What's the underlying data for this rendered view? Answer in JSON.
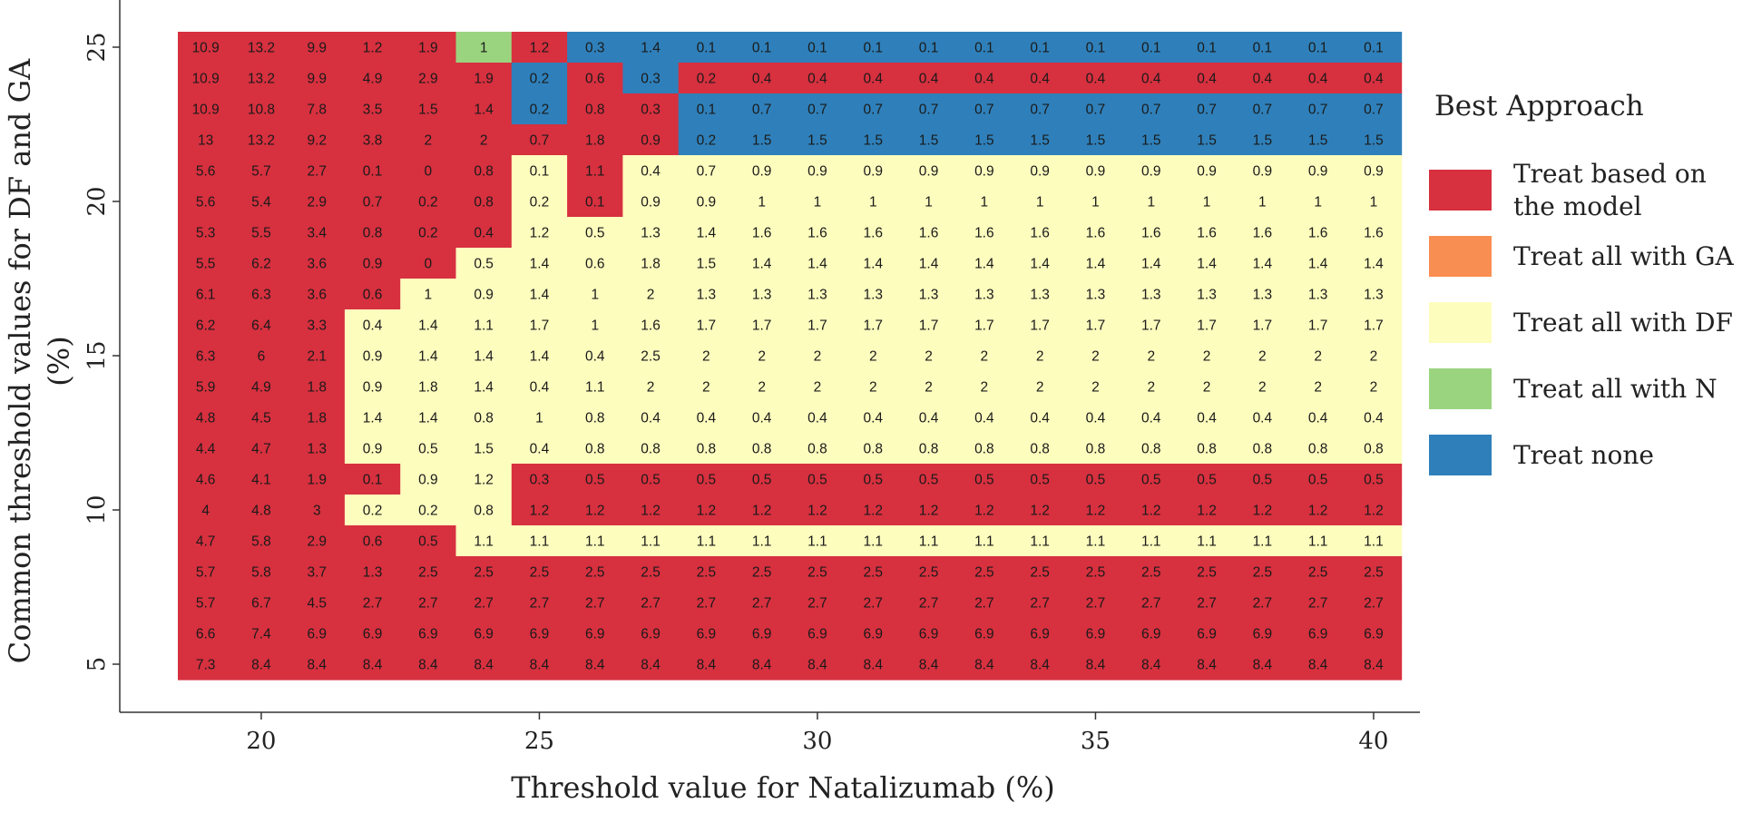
{
  "chart_data": {
    "type": "heatmap",
    "xlabel": "Threshold value for Natalizumab (%)",
    "ylabel_lines": [
      "Common threshold values for DF and GA",
      "(%)"
    ],
    "x": [
      19,
      20,
      21,
      22,
      23,
      24,
      25,
      26,
      27,
      28,
      29,
      30,
      31,
      32,
      33,
      34,
      35,
      36,
      37,
      38,
      39,
      40
    ],
    "y": [
      25,
      24,
      23,
      22,
      21,
      20,
      19,
      18,
      17,
      16,
      15,
      14,
      13,
      12,
      11,
      10,
      9,
      8,
      7,
      6,
      5
    ],
    "xticks": [
      20,
      25,
      30,
      35,
      40
    ],
    "yticks": [
      5,
      10,
      15,
      20,
      25
    ],
    "legend": {
      "title": "Best Approach",
      "entries": [
        {
          "key": "M",
          "label_lines": [
            "Treat based on",
            "the model"
          ],
          "color": "#d7303f"
        },
        {
          "key": "G",
          "label_lines": [
            "Treat all with GA"
          ],
          "color": "#f98e52"
        },
        {
          "key": "D",
          "label_lines": [
            "Treat all with DF"
          ],
          "color": "#fdfdbe"
        },
        {
          "key": "N",
          "label_lines": [
            "Treat all with N"
          ],
          "color": "#9bd47f"
        },
        {
          "key": "T",
          "label_lines": [
            "Treat none"
          ],
          "color": "#2f80ba"
        }
      ]
    },
    "categories": [
      "MMMMMNMTTTTTTTTTTTTTTT",
      "MMMMMMTMTMMMMMMMMMMMMM",
      "MMMMMMTMMTTTTTTTTTTTTT",
      "MMMMMMMMMTTTTTTTTTTTTT",
      "MMMMMMDMDDDDDDDDDDDDDD",
      "MMMMMMDMDDDDDDDDDDDDDD",
      "MMMMMMDDDDDDDDDDDDDDDD",
      "MMMMMDDDDDDDDDDDDDDDDD",
      "MMMMDDDDDDDDDDDDDDDDDD",
      "MMMDDDDDDDDDDDDDDDDDDD",
      "MMMDDDDDDDDDDDDDDDDDDD",
      "MMMDDDDDDDDDDDDDDDDDDD",
      "MMMDDDDDDDDDDDDDDDDDDD",
      "MMMDDDDDDDDDDDDDDDDDDD",
      "MMMMDDMMMMMMMMMMMMMMMM",
      "MMMDDDMMMMMMMMMMMMMMMM",
      "MMMMMDDDDDDDDDDDDDDDDD",
      "MMMMMMMMMMMMMMMMMMMMMM",
      "MMMMMMMMMMMMMMMMMMMMMM",
      "MMMMMMMMMMMMMMMMMMMMMM",
      "MMMMMMMMMMMMMMMMMMMMMM"
    ],
    "values": [
      [
        "10.9",
        "13.2",
        "9.9",
        "1.2",
        "1.9",
        "1",
        "1.2",
        "0.3",
        "1.4",
        "0.1",
        "0.1",
        "0.1",
        "0.1",
        "0.1",
        "0.1",
        "0.1",
        "0.1",
        "0.1",
        "0.1",
        "0.1",
        "0.1",
        "0.1"
      ],
      [
        "10.9",
        "13.2",
        "9.9",
        "4.9",
        "2.9",
        "1.9",
        "0.2",
        "0.6",
        "0.3",
        "0.2",
        "0.4",
        "0.4",
        "0.4",
        "0.4",
        "0.4",
        "0.4",
        "0.4",
        "0.4",
        "0.4",
        "0.4",
        "0.4",
        "0.4"
      ],
      [
        "10.9",
        "10.8",
        "7.8",
        "3.5",
        "1.5",
        "1.4",
        "0.2",
        "0.8",
        "0.3",
        "0.1",
        "0.7",
        "0.7",
        "0.7",
        "0.7",
        "0.7",
        "0.7",
        "0.7",
        "0.7",
        "0.7",
        "0.7",
        "0.7",
        "0.7"
      ],
      [
        "13",
        "13.2",
        "9.2",
        "3.8",
        "2",
        "2",
        "0.7",
        "1.8",
        "0.9",
        "0.2",
        "1.5",
        "1.5",
        "1.5",
        "1.5",
        "1.5",
        "1.5",
        "1.5",
        "1.5",
        "1.5",
        "1.5",
        "1.5",
        "1.5"
      ],
      [
        "5.6",
        "5.7",
        "2.7",
        "0.1",
        "0",
        "0.8",
        "0.1",
        "1.1",
        "0.4",
        "0.7",
        "0.9",
        "0.9",
        "0.9",
        "0.9",
        "0.9",
        "0.9",
        "0.9",
        "0.9",
        "0.9",
        "0.9",
        "0.9",
        "0.9"
      ],
      [
        "5.6",
        "5.4",
        "2.9",
        "0.7",
        "0.2",
        "0.8",
        "0.2",
        "0.1",
        "0.9",
        "0.9",
        "1",
        "1",
        "1",
        "1",
        "1",
        "1",
        "1",
        "1",
        "1",
        "1",
        "1",
        "1"
      ],
      [
        "5.3",
        "5.5",
        "3.4",
        "0.8",
        "0.2",
        "0.4",
        "1.2",
        "0.5",
        "1.3",
        "1.4",
        "1.6",
        "1.6",
        "1.6",
        "1.6",
        "1.6",
        "1.6",
        "1.6",
        "1.6",
        "1.6",
        "1.6",
        "1.6",
        "1.6"
      ],
      [
        "5.5",
        "6.2",
        "3.6",
        "0.9",
        "0",
        "0.5",
        "1.4",
        "0.6",
        "1.8",
        "1.5",
        "1.4",
        "1.4",
        "1.4",
        "1.4",
        "1.4",
        "1.4",
        "1.4",
        "1.4",
        "1.4",
        "1.4",
        "1.4",
        "1.4"
      ],
      [
        "6.1",
        "6.3",
        "3.6",
        "0.6",
        "1",
        "0.9",
        "1.4",
        "1",
        "2",
        "1.3",
        "1.3",
        "1.3",
        "1.3",
        "1.3",
        "1.3",
        "1.3",
        "1.3",
        "1.3",
        "1.3",
        "1.3",
        "1.3",
        "1.3"
      ],
      [
        "6.2",
        "6.4",
        "3.3",
        "0.4",
        "1.4",
        "1.1",
        "1.7",
        "1",
        "1.6",
        "1.7",
        "1.7",
        "1.7",
        "1.7",
        "1.7",
        "1.7",
        "1.7",
        "1.7",
        "1.7",
        "1.7",
        "1.7",
        "1.7",
        "1.7"
      ],
      [
        "6.3",
        "6",
        "2.1",
        "0.9",
        "1.4",
        "1.4",
        "1.4",
        "0.4",
        "2.5",
        "2",
        "2",
        "2",
        "2",
        "2",
        "2",
        "2",
        "2",
        "2",
        "2",
        "2",
        "2",
        "2"
      ],
      [
        "5.9",
        "4.9",
        "1.8",
        "0.9",
        "1.8",
        "1.4",
        "0.4",
        "1.1",
        "2",
        "2",
        "2",
        "2",
        "2",
        "2",
        "2",
        "2",
        "2",
        "2",
        "2",
        "2",
        "2",
        "2"
      ],
      [
        "4.8",
        "4.5",
        "1.8",
        "1.4",
        "1.4",
        "0.8",
        "1",
        "0.8",
        "0.4",
        "0.4",
        "0.4",
        "0.4",
        "0.4",
        "0.4",
        "0.4",
        "0.4",
        "0.4",
        "0.4",
        "0.4",
        "0.4",
        "0.4",
        "0.4"
      ],
      [
        "4.4",
        "4.7",
        "1.3",
        "0.9",
        "0.5",
        "1.5",
        "0.4",
        "0.8",
        "0.8",
        "0.8",
        "0.8",
        "0.8",
        "0.8",
        "0.8",
        "0.8",
        "0.8",
        "0.8",
        "0.8",
        "0.8",
        "0.8",
        "0.8",
        "0.8"
      ],
      [
        "4.6",
        "4.1",
        "1.9",
        "0.1",
        "0.9",
        "1.2",
        "0.3",
        "0.5",
        "0.5",
        "0.5",
        "0.5",
        "0.5",
        "0.5",
        "0.5",
        "0.5",
        "0.5",
        "0.5",
        "0.5",
        "0.5",
        "0.5",
        "0.5",
        "0.5"
      ],
      [
        "4",
        "4.8",
        "3",
        "0.2",
        "0.2",
        "0.8",
        "1.2",
        "1.2",
        "1.2",
        "1.2",
        "1.2",
        "1.2",
        "1.2",
        "1.2",
        "1.2",
        "1.2",
        "1.2",
        "1.2",
        "1.2",
        "1.2",
        "1.2",
        "1.2"
      ],
      [
        "4.7",
        "5.8",
        "2.9",
        "0.6",
        "0.5",
        "1.1",
        "1.1",
        "1.1",
        "1.1",
        "1.1",
        "1.1",
        "1.1",
        "1.1",
        "1.1",
        "1.1",
        "1.1",
        "1.1",
        "1.1",
        "1.1",
        "1.1",
        "1.1",
        "1.1"
      ],
      [
        "5.7",
        "5.8",
        "3.7",
        "1.3",
        "2.5",
        "2.5",
        "2.5",
        "2.5",
        "2.5",
        "2.5",
        "2.5",
        "2.5",
        "2.5",
        "2.5",
        "2.5",
        "2.5",
        "2.5",
        "2.5",
        "2.5",
        "2.5",
        "2.5",
        "2.5"
      ],
      [
        "5.7",
        "6.7",
        "4.5",
        "2.7",
        "2.7",
        "2.7",
        "2.7",
        "2.7",
        "2.7",
        "2.7",
        "2.7",
        "2.7",
        "2.7",
        "2.7",
        "2.7",
        "2.7",
        "2.7",
        "2.7",
        "2.7",
        "2.7",
        "2.7",
        "2.7"
      ],
      [
        "6.6",
        "7.4",
        "6.9",
        "6.9",
        "6.9",
        "6.9",
        "6.9",
        "6.9",
        "6.9",
        "6.9",
        "6.9",
        "6.9",
        "6.9",
        "6.9",
        "6.9",
        "6.9",
        "6.9",
        "6.9",
        "6.9",
        "6.9",
        "6.9",
        "6.9"
      ],
      [
        "7.3",
        "8.4",
        "8.4",
        "8.4",
        "8.4",
        "8.4",
        "8.4",
        "8.4",
        "8.4",
        "8.4",
        "8.4",
        "8.4",
        "8.4",
        "8.4",
        "8.4",
        "8.4",
        "8.4",
        "8.4",
        "8.4",
        "8.4",
        "8.4",
        "8.4"
      ]
    ]
  }
}
